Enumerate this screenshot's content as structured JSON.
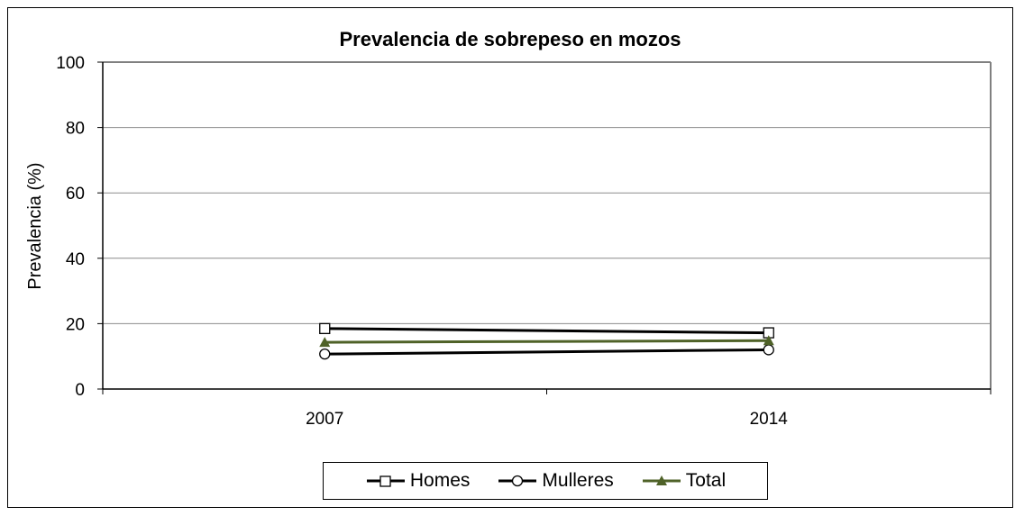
{
  "chart_data": {
    "type": "line",
    "title": "Prevalencia de sobrepeso en mozos",
    "xlabel": "",
    "ylabel": "Prevalencia (%)",
    "categories": [
      "2007",
      "2014"
    ],
    "ylim": [
      0,
      100
    ],
    "yticks": [
      "0",
      "20",
      "40",
      "60",
      "80",
      "100"
    ],
    "grid": true,
    "legend_position": "bottom",
    "series": [
      {
        "name": "Homes",
        "values": [
          18.5,
          17.2
        ],
        "color": "#000000",
        "marker": "square"
      },
      {
        "name": "Mulleres",
        "values": [
          10.7,
          12.0
        ],
        "color": "#000000",
        "marker": "circle"
      },
      {
        "name": "Total",
        "values": [
          14.3,
          14.8
        ],
        "color": "#4f6228",
        "marker": "triangle"
      }
    ]
  }
}
